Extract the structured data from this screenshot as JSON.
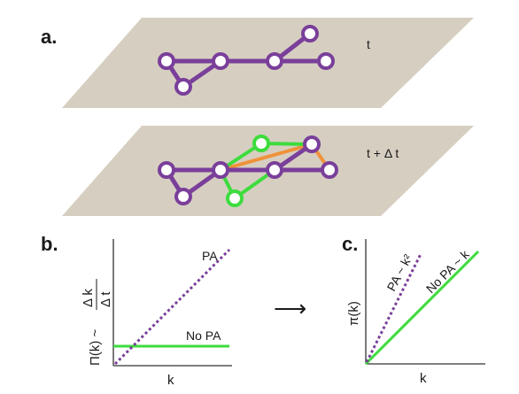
{
  "panels": {
    "a": {
      "label": "a.",
      "top_plane_time": "t",
      "bottom_plane_time": "t + Δ t"
    },
    "b": {
      "label": "b.",
      "xlabel": "k",
      "ylabel_left": "Π(k) ~",
      "ylabel_num": "Δ k",
      "ylabel_den": "Δ t",
      "pa_label": "PA",
      "nopa_label": "No PA"
    },
    "arrow": "⟶",
    "c": {
      "label": "c.",
      "xlabel": "k",
      "ylabel": "π(k)",
      "pa_label": "PA ~ k²",
      "nopa_label": "No PA ~ k"
    }
  },
  "colors": {
    "plane": "#d6cfc1",
    "existing_node_edge": "#7a3f9a",
    "new_node_edge": "#3ddc3d",
    "new_internal_edge": "#f0923a",
    "axis": "#333333"
  }
}
